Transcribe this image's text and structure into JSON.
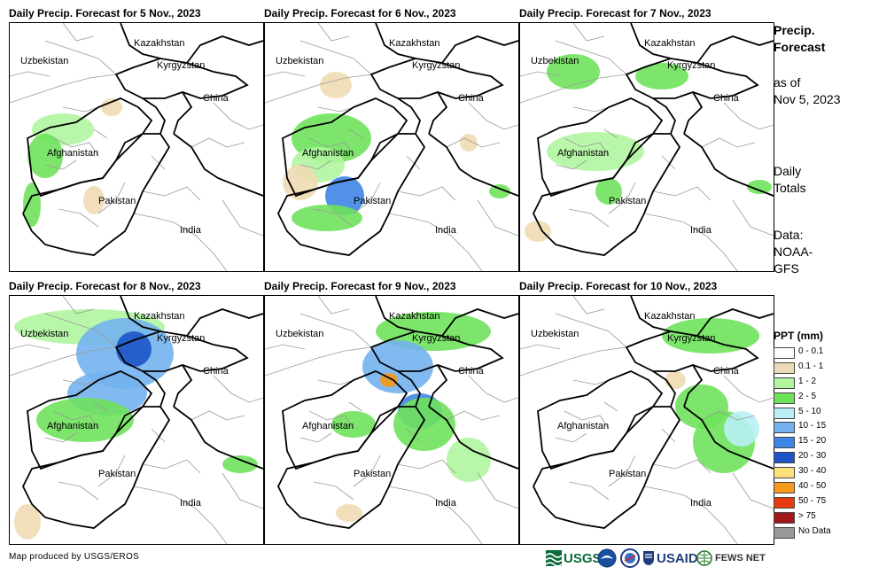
{
  "panels": [
    {
      "title": "Daily Precip. Forecast for 5 Nov., 2023",
      "day": 1
    },
    {
      "title": "Daily Precip. Forecast for 6 Nov., 2023",
      "day": 2
    },
    {
      "title": "Daily Precip. Forecast for 7 Nov., 2023",
      "day": 3
    },
    {
      "title": "Daily Precip. Forecast for 8 Nov., 2023",
      "day": 4
    },
    {
      "title": "Daily Precip. Forecast for 9 Nov., 2023",
      "day": 5
    },
    {
      "title": "Daily Precip. Forecast for 10 Nov., 2023",
      "day": 6
    }
  ],
  "map_labels": {
    "kazakhstan": "Kazakhstan",
    "uzbekistan": "Uzbekistan",
    "kyrgyzstan": "Kyrgyzstan",
    "china": "China",
    "afghanistan": "Afghanistan",
    "pakistan": "Pakistan",
    "india": "India"
  },
  "side_info": {
    "heading_line1": "Precip.",
    "heading_line2": "Forecast",
    "asof_line1": "as of",
    "asof_line2": "Nov 5, 2023",
    "totals_line1": "Daily",
    "totals_line2": "Totals",
    "data_line1": "Data:",
    "data_line2": "NOAA-",
    "data_line3": "GFS"
  },
  "legend": {
    "title": "PPT (mm)",
    "items": [
      {
        "label": "0 - 0.1",
        "color": "#ffffff"
      },
      {
        "label": "0.1 - 1",
        "color": "#f0dcb4"
      },
      {
        "label": "1 - 2",
        "color": "#b0f5a0"
      },
      {
        "label": "2 - 5",
        "color": "#6fe25c"
      },
      {
        "label": "5 - 10",
        "color": "#b8f0f5"
      },
      {
        "label": "10 - 15",
        "color": "#73b2ee"
      },
      {
        "label": "15 - 20",
        "color": "#3f85e6"
      },
      {
        "label": "20 - 30",
        "color": "#1c55c8"
      },
      {
        "label": "30 - 40",
        "color": "#fce07a"
      },
      {
        "label": "40 - 50",
        "color": "#f59a1a"
      },
      {
        "label": "50 - 75",
        "color": "#e83a10"
      },
      {
        "label": "> 75",
        "color": "#a01818"
      },
      {
        "label": "No Data",
        "color": "#999999"
      }
    ]
  },
  "footer": {
    "credit": "Map produced by USGS/EROS",
    "logo_usgs": "USGS",
    "logo_usaid": "USAID",
    "logo_fewsnet": "FEWS NET"
  }
}
